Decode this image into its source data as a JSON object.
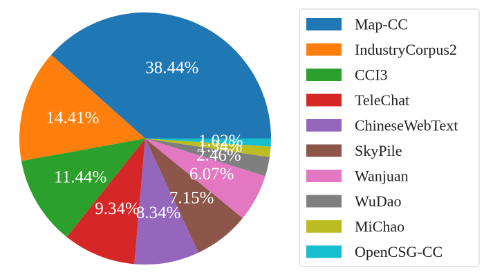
{
  "chart_data": {
    "type": "pie",
    "title": "",
    "legend_position": "right",
    "start_angle_deg": 0,
    "direction": "counterclockwise",
    "slices": [
      {
        "label": "Map-CC",
        "value": 38.44,
        "pct_label": "38.44%",
        "color": "#1f77b4"
      },
      {
        "label": "IndustryCorpus2",
        "value": 14.41,
        "pct_label": "14.41%",
        "color": "#ff7f0e"
      },
      {
        "label": "CCI3",
        "value": 11.44,
        "pct_label": "11.44%",
        "color": "#2ca02c"
      },
      {
        "label": "TeleChat",
        "value": 9.34,
        "pct_label": "9.34%",
        "color": "#d62728"
      },
      {
        "label": "ChineseWebText",
        "value": 8.34,
        "pct_label": "8.34%",
        "color": "#9467bd"
      },
      {
        "label": "SkyPile",
        "value": 7.15,
        "pct_label": "7.15%",
        "color": "#8c564b"
      },
      {
        "label": "Wanjuan",
        "value": 6.07,
        "pct_label": "6.07%",
        "color": "#e377c2"
      },
      {
        "label": "WuDao",
        "value": 2.46,
        "pct_label": "2.46%",
        "color": "#7f7f7f"
      },
      {
        "label": "MiChao",
        "value": 1.34,
        "pct_label": "1.34%",
        "color": "#bcbd22"
      },
      {
        "label": "OpenCSG-CC",
        "value": 1.02,
        "pct_label": "1.02%",
        "color": "#17becf"
      }
    ]
  }
}
